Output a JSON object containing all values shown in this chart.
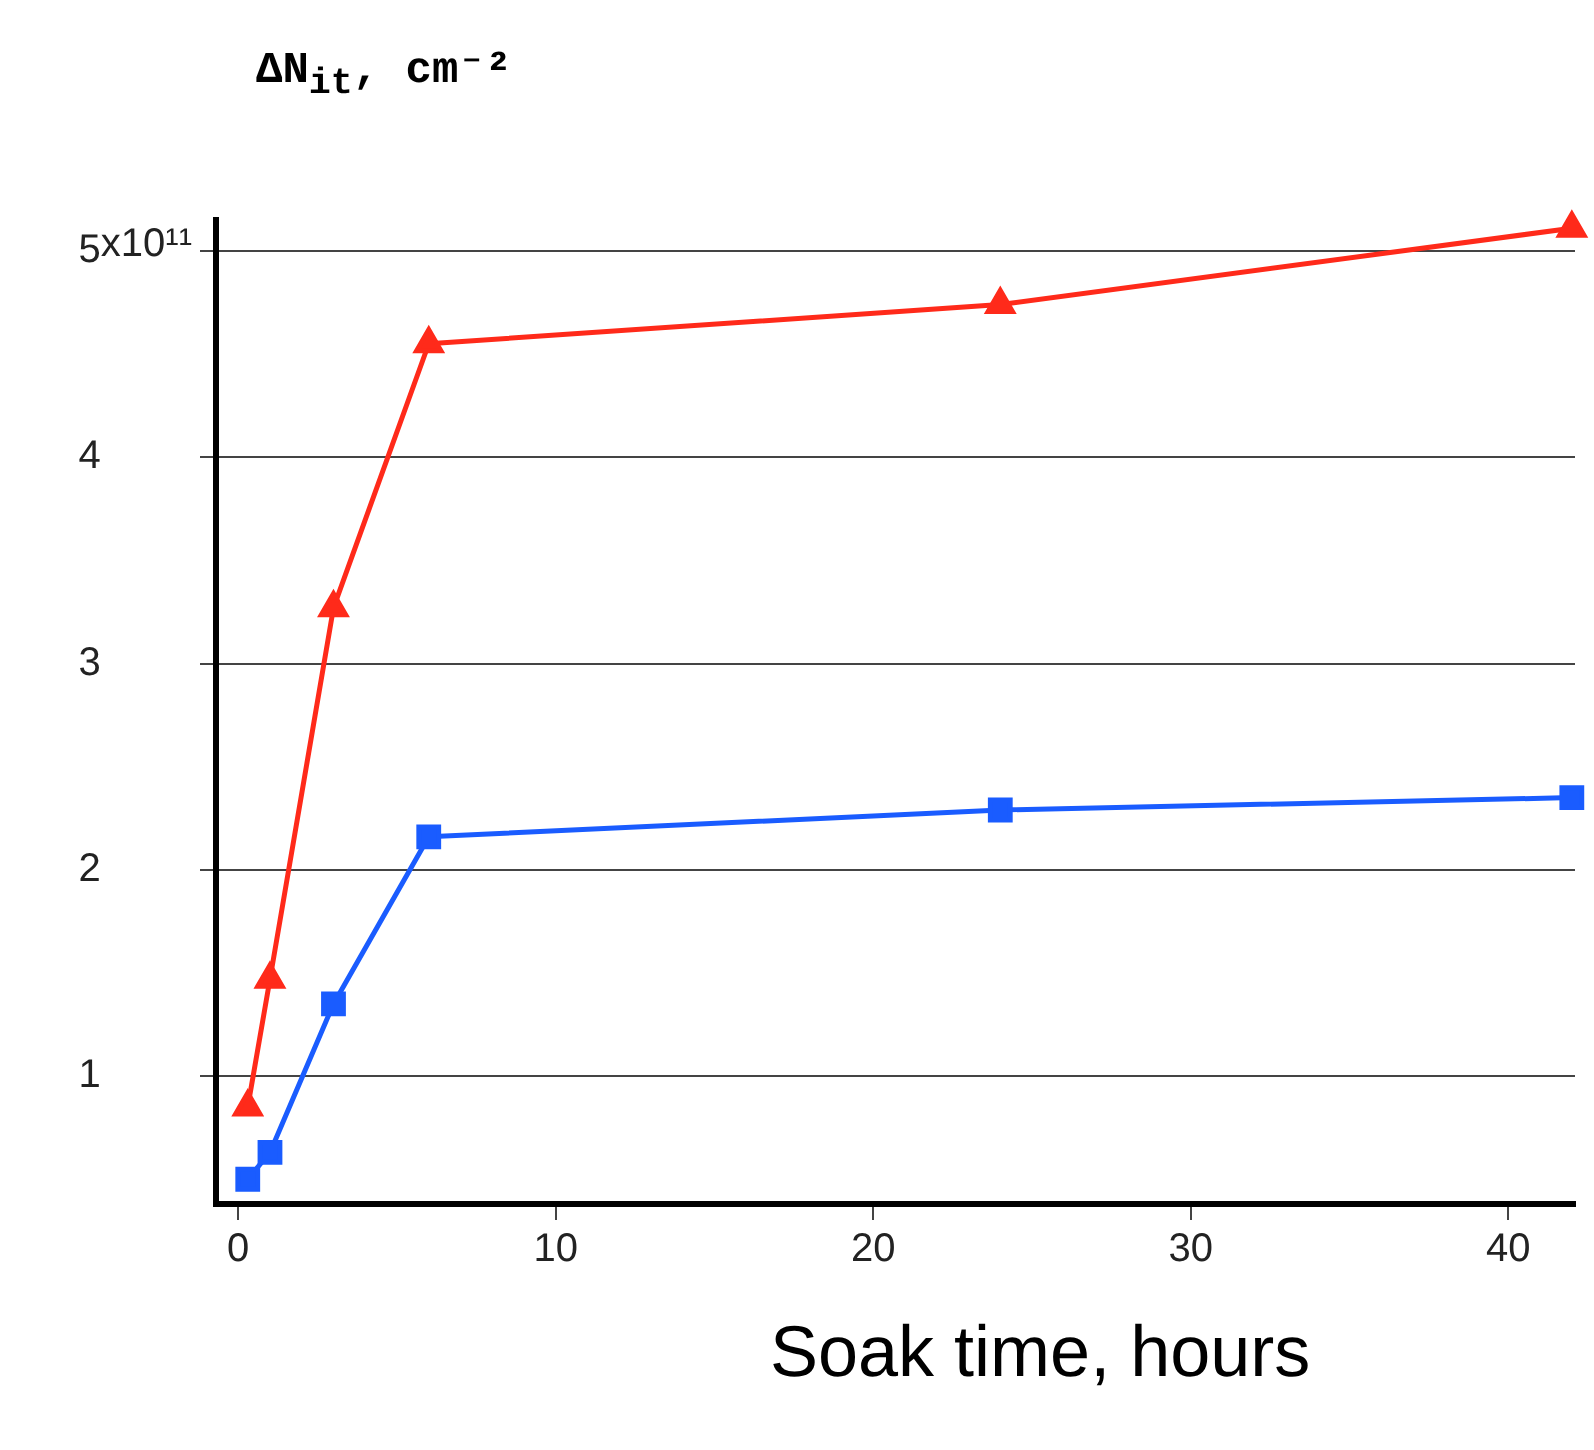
{
  "chart_data": {
    "type": "line",
    "xlabel": "Soak time, hours",
    "ylabel": "ΔN$_{it}$, cm⁻²",
    "xlim": [
      -0.7,
      42.1
    ],
    "xticks": [
      0,
      10,
      20,
      30,
      40
    ],
    "ylim": [
      0.38,
      5.15
    ],
    "yticks": [
      1,
      2,
      3,
      4,
      5
    ],
    "annotations": [
      "x10¹¹"
    ],
    "grid": "y",
    "legend": false,
    "line_style": "solid",
    "series": [
      {
        "color": "#ff2a1a",
        "marker": "triangle",
        "x": [
          0.3,
          1,
          3,
          6,
          24,
          42
        ],
        "values": [
          0.85,
          1.47,
          3.27,
          4.55,
          4.74,
          5.11
        ]
      },
      {
        "color": "#1a5cff",
        "marker": "square",
        "x": [
          0.3,
          1,
          3,
          6,
          24,
          42
        ],
        "values": [
          0.5,
          0.63,
          1.35,
          2.16,
          2.29,
          2.35
        ]
      }
    ]
  }
}
